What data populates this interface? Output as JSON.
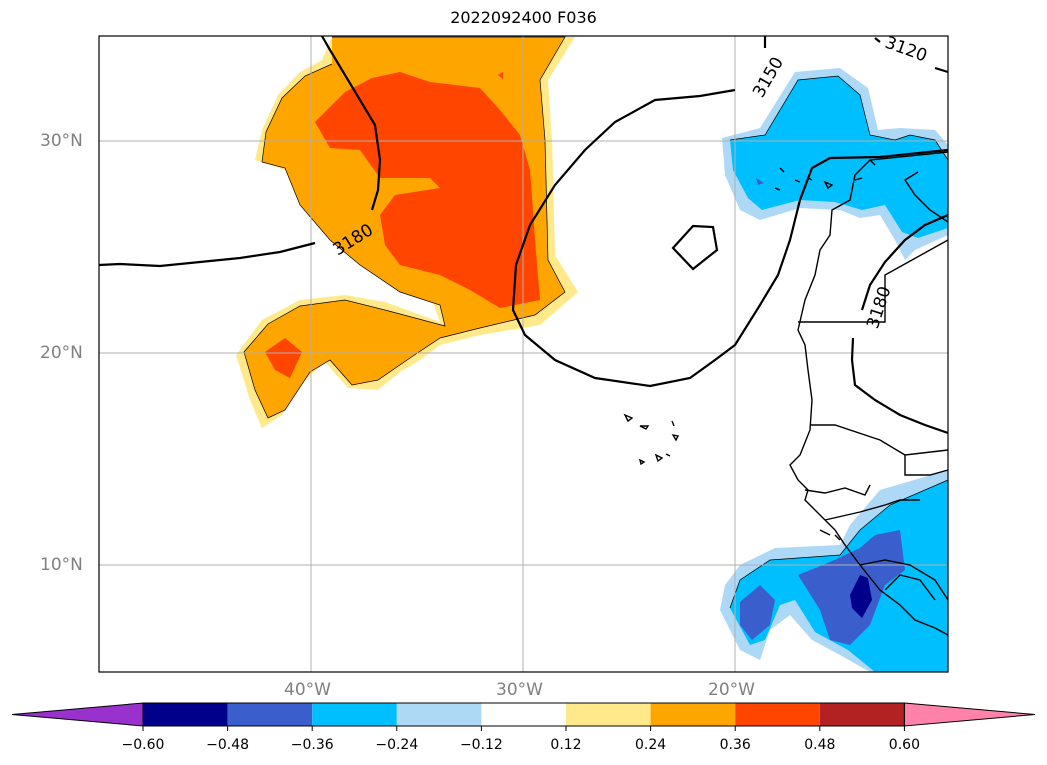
{
  "title": "2022092400 F036",
  "map": {
    "lat_labels": [
      "30°N",
      "20°N",
      "10°N"
    ],
    "lon_labels": [
      "40°W",
      "30°W",
      "20°W"
    ],
    "contour_labels": [
      "3180",
      "3150",
      "3120",
      "3180"
    ]
  },
  "colorbar": {
    "ticks": [
      "−0.60",
      "−0.48",
      "−0.36",
      "−0.24",
      "−0.12",
      "0.12",
      "0.24",
      "0.36",
      "0.48",
      "0.60"
    ],
    "colors": [
      "#9932cc",
      "#00008b",
      "#3a5fcd",
      "#00bfff",
      "#add8f6",
      "#ffffff",
      "#ffe98a",
      "#ffa500",
      "#ff4500",
      "#b22222",
      "#ff82ab"
    ]
  }
}
